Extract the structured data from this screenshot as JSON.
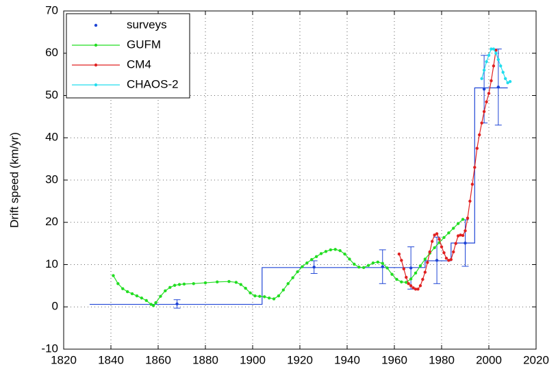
{
  "chart_data": {
    "type": "line",
    "ylabel": "Drift speed (km/yr)",
    "xlim": [
      1820,
      2020
    ],
    "xticks": [
      1820,
      1840,
      1860,
      1880,
      1900,
      1920,
      1940,
      1960,
      1980,
      2000,
      2020
    ],
    "ylim": [
      -10,
      70
    ],
    "yticks": [
      -10,
      0,
      10,
      20,
      30,
      40,
      50,
      60,
      70
    ],
    "grid": true,
    "legend": "upper left",
    "series": [
      {
        "name": "surveys",
        "color": "#1f45d6",
        "style": "markers",
        "x": [
          1868,
          1926,
          1955,
          1967,
          1978,
          1990,
          1998,
          2004
        ],
        "values": [
          0.7,
          9.4,
          9.5,
          9.2,
          11,
          15.1,
          51.5,
          52
        ],
        "errors": [
          1,
          1.5,
          4,
          5,
          5.5,
          5.5,
          8,
          9
        ],
        "steps": {
          "x": [
            1831,
            1904,
            1904,
            1973,
            1973,
            1984,
            1984,
            1994,
            1994,
            2008
          ],
          "values": [
            0.6,
            0.6,
            9.3,
            9.3,
            10.9,
            10.9,
            15.1,
            15.1,
            51.8,
            51.8
          ]
        }
      },
      {
        "name": "GUFM",
        "color": "#22dd22",
        "style": "line",
        "x": [
          1841,
          1843,
          1845,
          1847,
          1849,
          1851,
          1853,
          1855,
          1857,
          1858,
          1859,
          1861,
          1863,
          1865,
          1867,
          1869,
          1871,
          1875,
          1880,
          1885,
          1890,
          1893,
          1895,
          1897,
          1899,
          1901,
          1903,
          1905,
          1907,
          1909,
          1911,
          1913,
          1915,
          1917,
          1919,
          1921,
          1923,
          1925,
          1927,
          1929,
          1931,
          1933,
          1935,
          1937,
          1939,
          1941,
          1943,
          1945,
          1947,
          1949,
          1951,
          1953,
          1955,
          1957,
          1959,
          1961,
          1963,
          1965,
          1967,
          1969,
          1971,
          1973,
          1975,
          1977,
          1979,
          1981,
          1983,
          1985,
          1987,
          1989
        ],
        "values": [
          7.4,
          5.5,
          4.3,
          3.6,
          3.1,
          2.6,
          2.1,
          1.5,
          0.6,
          0.3,
          1.0,
          2.5,
          3.8,
          4.6,
          5.1,
          5.3,
          5.4,
          5.5,
          5.7,
          5.9,
          6.0,
          5.8,
          5.3,
          4.4,
          3.3,
          2.6,
          2.5,
          2.4,
          2.1,
          1.9,
          2.6,
          4.0,
          5.5,
          6.9,
          8.3,
          9.5,
          10.4,
          11.2,
          11.9,
          12.6,
          13.1,
          13.5,
          13.6,
          13.3,
          12.5,
          11.3,
          10.1,
          9.4,
          9.3,
          9.8,
          10.4,
          10.6,
          10.3,
          9.2,
          7.7,
          6.5,
          5.9,
          5.8,
          6.6,
          8.0,
          9.7,
          11.3,
          12.7,
          14.0,
          15.2,
          16.4,
          17.5,
          18.6,
          19.7,
          20.7
        ]
      },
      {
        "name": "CM4",
        "color": "#e02020",
        "style": "line",
        "x": [
          1962,
          1963,
          1964,
          1965,
          1966,
          1967,
          1968,
          1969,
          1970,
          1971,
          1972,
          1973,
          1974,
          1975,
          1976,
          1977,
          1978,
          1979,
          1980,
          1981,
          1982,
          1983,
          1984,
          1985,
          1986,
          1987,
          1988,
          1989,
          1990,
          1991,
          1992,
          1993,
          1994,
          1995,
          1996,
          1997,
          1998,
          1999,
          2000,
          2001,
          2002,
          2003
        ],
        "values": [
          12.5,
          11,
          9,
          7,
          5.5,
          5,
          4.5,
          4.2,
          4.2,
          5,
          6.5,
          8.2,
          10.5,
          13,
          15.5,
          17,
          17.3,
          16,
          14.2,
          12.8,
          11.5,
          11,
          11.2,
          13,
          15,
          16.8,
          17,
          16.9,
          18,
          21,
          25,
          29,
          33,
          37.5,
          40.7,
          43.5,
          46.2,
          48.5,
          50.5,
          53.5,
          57,
          60.7
        ]
      },
      {
        "name": "CHAOS-2",
        "color": "#22ddee",
        "style": "line",
        "x": [
          1997,
          1998,
          1999,
          2000,
          2001,
          2002,
          2003,
          2004,
          2005,
          2006,
          2007,
          2008,
          2009
        ],
        "values": [
          54,
          56,
          58,
          59.5,
          61,
          61,
          60,
          58.5,
          57,
          55.5,
          54,
          53,
          53.3
        ]
      }
    ]
  }
}
